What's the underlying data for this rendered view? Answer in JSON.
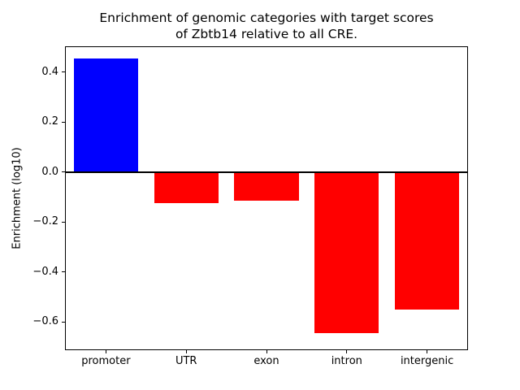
{
  "chart_data": {
    "type": "bar",
    "title": "Enrichment of genomic categories with target scores\nof Zbtb14 relative to all CRE.",
    "xlabel": "",
    "ylabel": "Enrichment (log10)",
    "categories": [
      "promoter",
      "UTR",
      "exon",
      "intron",
      "intergenic"
    ],
    "values": [
      0.455,
      -0.125,
      -0.115,
      -0.645,
      -0.55
    ],
    "colors": [
      "#0000ff",
      "#ff0000",
      "#ff0000",
      "#ff0000",
      "#ff0000"
    ],
    "positive_color": "#0000ff",
    "negative_color": "#ff0000",
    "ylim": [
      -0.71,
      0.5
    ],
    "yticks": {
      "values": [
        0.4,
        0.2,
        0.0,
        -0.2,
        -0.4,
        -0.6
      ],
      "labels": [
        "0.4",
        "0.2",
        "0.0",
        "−0.2",
        "−0.4",
        "−0.6"
      ]
    },
    "zero_line": true,
    "grid": false,
    "legend_position": "none",
    "bar_width_fraction": 0.8
  }
}
